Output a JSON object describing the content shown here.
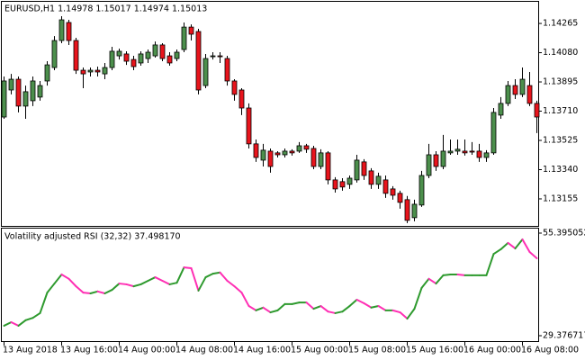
{
  "chart_data": [
    {
      "type": "candlestick",
      "title": "EURUSD,H1  1.14978 1.15017 1.14974 1.15013",
      "categories": [
        "13 Aug 2018",
        null,
        null,
        null,
        null,
        null,
        null,
        null,
        "13 Aug 16:00",
        null,
        null,
        null,
        null,
        null,
        null,
        null,
        "14 Aug 00:00",
        null,
        null,
        null,
        null,
        null,
        null,
        null,
        "14 Aug 08:00",
        null,
        null,
        null,
        null,
        null,
        null,
        null,
        "14 Aug 16:00",
        null,
        null,
        null,
        null,
        null,
        null,
        null,
        "15 Aug 00:00",
        null,
        null,
        null,
        null,
        null,
        null,
        null,
        "15 Aug 08:00",
        null,
        null,
        null,
        null,
        null,
        null,
        null,
        "15 Aug 16:00",
        null,
        null,
        null,
        null,
        null,
        null,
        null,
        "16 Aug 00:00",
        null,
        null,
        null,
        null,
        null,
        null,
        null,
        "16 Aug 08:00",
        null,
        null
      ],
      "open": [
        1.13673,
        1.13844,
        1.13912,
        1.13742,
        1.13776,
        1.13799,
        1.13901,
        1.13986,
        1.14157,
        1.14271,
        1.14157,
        1.13969,
        1.13958,
        1.13969,
        1.13946,
        1.13986,
        1.1406,
        1.14072,
        1.14037,
        1.14015,
        1.14043,
        1.1406,
        1.14129,
        1.1406,
        1.14043,
        1.141,
        1.14242,
        1.14214,
        1.13872,
        1.14055,
        1.1406,
        1.14043,
        1.13901,
        1.13844,
        1.1373,
        1.13503,
        1.134,
        1.13457,
        1.13446,
        1.13434,
        1.13457,
        1.13457,
        1.13491,
        1.13474,
        1.1336,
        1.13446,
        1.13275,
        1.13264,
        1.13247,
        1.13275,
        1.13389,
        1.13332,
        1.13247,
        1.13275,
        1.13218,
        1.1319,
        1.1315,
        1.13036,
        1.13116,
        1.13303,
        1.13434,
        1.1336,
        1.13446,
        1.13457,
        1.13457,
        1.13457,
        1.13457,
        1.13417,
        1.13446,
        1.13685,
        1.13759,
        1.13872,
        1.13816,
        1.13872,
        1.13759
      ],
      "high": [
        1.13929,
        1.13946,
        1.13929,
        1.13872,
        1.13929,
        1.13901,
        1.14026,
        1.14185,
        1.14311,
        1.14288,
        1.14174,
        1.13986,
        1.13986,
        1.13992,
        1.14015,
        1.14117,
        1.14106,
        1.14089,
        1.1406,
        1.14089,
        1.141,
        1.14151,
        1.1414,
        1.14083,
        1.141,
        1.14271,
        1.14259,
        1.14231,
        1.14072,
        1.14083,
        1.14083,
        1.1406,
        1.13912,
        1.13855,
        1.13759,
        1.13531,
        1.13503,
        1.13474,
        1.13457,
        1.13474,
        1.13469,
        1.13514,
        1.13503,
        1.13491,
        1.13469,
        1.13457,
        1.13292,
        1.13286,
        1.13303,
        1.13434,
        1.13406,
        1.13349,
        1.13321,
        1.13303,
        1.13235,
        1.13207,
        1.13173,
        1.1315,
        1.13332,
        1.13503,
        1.13457,
        1.1356,
        1.13531,
        1.13531,
        1.13531,
        1.13514,
        1.13503,
        1.13463,
        1.1373,
        1.13799,
        1.13901,
        1.13912,
        1.13986,
        1.13958,
        1.13776
      ],
      "low": [
        1.13662,
        1.13816,
        1.13702,
        1.13662,
        1.13742,
        1.13776,
        1.13872,
        1.13969,
        1.1414,
        1.14129,
        1.13946,
        1.13855,
        1.13929,
        1.13929,
        1.13912,
        1.13969,
        1.14037,
        1.14003,
        1.13969,
        1.13998,
        1.14015,
        1.14049,
        1.14026,
        1.13998,
        1.14026,
        1.14083,
        1.14157,
        1.13816,
        1.13855,
        1.14037,
        1.14015,
        1.13872,
        1.13776,
        1.13685,
        1.13474,
        1.13389,
        1.1336,
        1.13321,
        1.13417,
        1.13417,
        1.13429,
        1.13446,
        1.13446,
        1.13343,
        1.13343,
        1.13247,
        1.13195,
        1.13207,
        1.13218,
        1.13258,
        1.13275,
        1.13218,
        1.13218,
        1.13161,
        1.1315,
        1.13093,
        1.13002,
        1.13013,
        1.13104,
        1.13286,
        1.13332,
        1.13343,
        1.13434,
        1.13434,
        1.13429,
        1.13434,
        1.13389,
        1.13389,
        1.13434,
        1.13662,
        1.13742,
        1.13787,
        1.13799,
        1.13742,
        1.13571
      ],
      "close": [
        1.13901,
        1.13912,
        1.13742,
        1.13833,
        1.13901,
        1.13872,
        1.14003,
        1.14157,
        1.14288,
        1.14157,
        1.13969,
        1.13946,
        1.13969,
        1.13958,
        1.13986,
        1.14089,
        1.14089,
        1.14026,
        1.13992,
        1.14072,
        1.14083,
        1.14129,
        1.14043,
        1.14015,
        1.14083,
        1.14242,
        1.14197,
        1.13844,
        1.14043,
        1.1406,
        1.14055,
        1.13901,
        1.13816,
        1.1373,
        1.13503,
        1.13417,
        1.13463,
        1.1336,
        1.13434,
        1.13457,
        1.13446,
        1.13491,
        1.13469,
        1.1336,
        1.13446,
        1.13275,
        1.13218,
        1.1323,
        1.13286,
        1.134,
        1.13303,
        1.13247,
        1.13298,
        1.1319,
        1.13178,
        1.13133,
        1.13019,
        1.13121,
        1.13303,
        1.13434,
        1.1336,
        1.13457,
        1.13457,
        1.13469,
        1.13446,
        1.13451,
        1.13417,
        1.13446,
        1.13702,
        1.13759,
        1.13872,
        1.13816,
        1.13912,
        1.13759,
        1.13673
      ],
      "up_color": "#4c8f4c",
      "down_color": "#e8141c",
      "ylim": [
        1.12984,
        1.14402
      ],
      "yticks": [
        {
          "value": 1.14265,
          "label": "1.14265"
        },
        {
          "value": 1.1408,
          "label": "1.14080"
        },
        {
          "value": 1.13895,
          "label": "1.13895"
        },
        {
          "value": 1.1371,
          "label": "1.13710"
        },
        {
          "value": 1.13525,
          "label": "1.13525"
        },
        {
          "value": 1.1334,
          "label": "1.13340"
        },
        {
          "value": 1.13155,
          "label": "1.13155"
        }
      ]
    },
    {
      "type": "line",
      "title": "Volatility adjusted RSI (32,32) 37.498170",
      "values": [
        31.9,
        32.8,
        31.9,
        33.3,
        33.9,
        35.1,
        40.3,
        42.6,
        44.9,
        43.8,
        41.9,
        40.3,
        40.1,
        40.6,
        40.1,
        41.0,
        42.6,
        42.4,
        41.9,
        42.4,
        43.3,
        44.2,
        43.3,
        42.4,
        42.8,
        46.7,
        46.5,
        40.8,
        44.2,
        45.1,
        45.4,
        43.3,
        41.9,
        40.3,
        36.9,
        35.8,
        36.5,
        35.3,
        35.8,
        37.4,
        37.4,
        37.8,
        37.8,
        36.2,
        36.9,
        35.5,
        35.1,
        35.5,
        36.9,
        38.5,
        37.6,
        36.5,
        36.9,
        35.8,
        35.8,
        35.3,
        33.7,
        36.2,
        41.5,
        43.8,
        42.6,
        44.7,
        44.9,
        44.9,
        44.7,
        44.7,
        44.7,
        44.7,
        50.1,
        51.3,
        52.9,
        51.5,
        53.8,
        50.6,
        49.0
      ],
      "up_color": "#2e9a2e",
      "down_color": "#ff2fb4",
      "ylim": [
        27.779,
        56.536
      ],
      "yticks": [
        55.395052,
        29.376717
      ]
    }
  ]
}
